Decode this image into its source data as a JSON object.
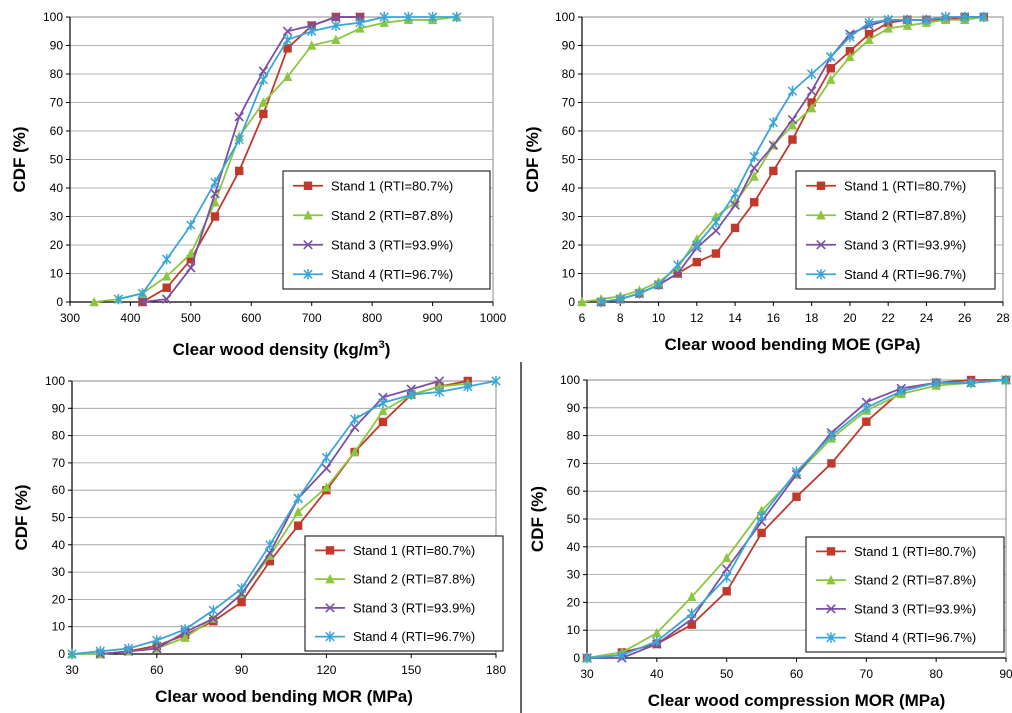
{
  "chart_data": [
    {
      "type": "line",
      "xlabel": "Clear wood density (kg/m",
      "xlabel_superscript": "3",
      "xlabel_suffix": ")",
      "ylabel": "CDF (%)",
      "xlim": [
        300,
        1000
      ],
      "ylim": [
        0,
        100
      ],
      "xticks": [
        300,
        400,
        500,
        600,
        700,
        800,
        900,
        1000
      ],
      "yticks": [
        0,
        10,
        20,
        30,
        40,
        50,
        60,
        70,
        80,
        90,
        100
      ],
      "grid": "horizontal",
      "legend_position": "bottom-right",
      "series": [
        {
          "name": "Stand 1 (RTI=80.7%)",
          "color": "#c0392b",
          "marker": "square",
          "x": [
            420,
            460,
            500,
            540,
            580,
            620,
            660,
            700,
            740,
            780
          ],
          "y": [
            0,
            5,
            15,
            30,
            46,
            66,
            89,
            97,
            100,
            100
          ]
        },
        {
          "name": "Stand 2 (RTI=87.8%)",
          "color": "#8cc63f",
          "marker": "triangle",
          "x": [
            340,
            380,
            420,
            460,
            500,
            540,
            580,
            620,
            660,
            700,
            740,
            780,
            820,
            860,
            900,
            940
          ],
          "y": [
            0,
            1,
            3,
            9,
            17,
            35,
            58,
            70,
            79,
            90,
            92,
            96,
            98,
            99,
            99,
            100
          ]
        },
        {
          "name": "Stand 3 (RTI=93.9%)",
          "color": "#7b4fa3",
          "marker": "x",
          "x": [
            420,
            460,
            500,
            540,
            580,
            620,
            660,
            700,
            740,
            780
          ],
          "y": [
            0,
            1,
            12,
            38,
            65,
            81,
            95,
            97,
            100,
            100
          ]
        },
        {
          "name": "Stand 4 (RTI=96.7%)",
          "color": "#3aa6d8",
          "marker": "star",
          "x": [
            380,
            420,
            460,
            500,
            540,
            580,
            620,
            660,
            700,
            740,
            780,
            820,
            860,
            900,
            940
          ],
          "y": [
            1,
            3,
            15,
            27,
            42,
            57,
            78,
            92,
            95,
            97,
            98,
            100,
            100,
            100,
            100
          ]
        }
      ]
    },
    {
      "type": "line",
      "xlabel": "Clear wood bending MOE (GPa)",
      "ylabel": "CDF (%)",
      "xlim": [
        6,
        28
      ],
      "ylim": [
        0,
        100
      ],
      "xticks": [
        6,
        8,
        10,
        12,
        14,
        16,
        18,
        20,
        22,
        24,
        26,
        28
      ],
      "yticks": [
        0,
        10,
        20,
        30,
        40,
        50,
        60,
        70,
        80,
        90,
        100
      ],
      "grid": "horizontal",
      "legend_position": "bottom-right",
      "series": [
        {
          "name": "Stand 1 (RTI=80.7%)",
          "color": "#c0392b",
          "marker": "square",
          "x": [
            7,
            8,
            9,
            10,
            11,
            12,
            13,
            14,
            15,
            16,
            17,
            18,
            19,
            20,
            21,
            22,
            23,
            24,
            25,
            26,
            27
          ],
          "y": [
            0,
            1,
            3,
            6,
            10,
            14,
            17,
            26,
            35,
            46,
            57,
            70,
            82,
            88,
            94,
            98,
            99,
            99,
            99,
            100,
            100
          ]
        },
        {
          "name": "Stand 2 (RTI=87.8%)",
          "color": "#8cc63f",
          "marker": "triangle",
          "x": [
            6,
            7,
            8,
            9,
            10,
            11,
            12,
            13,
            14,
            15,
            16,
            17,
            18,
            19,
            20,
            21,
            22,
            23,
            24,
            25,
            26,
            27
          ],
          "y": [
            0,
            1,
            2,
            4,
            7,
            12,
            22,
            30,
            35,
            44,
            55,
            62,
            68,
            78,
            86,
            92,
            96,
            97,
            98,
            99,
            99,
            100
          ]
        },
        {
          "name": "Stand 3 (RTI=93.9%)",
          "color": "#7b4fa3",
          "marker": "x",
          "x": [
            7,
            8,
            9,
            10,
            11,
            12,
            13,
            14,
            15,
            16,
            17,
            18,
            19,
            20,
            21,
            22,
            23,
            24,
            25,
            26,
            27
          ],
          "y": [
            0,
            1,
            3,
            6,
            10,
            19,
            25,
            34,
            47,
            55,
            64,
            74,
            86,
            94,
            97,
            99,
            99,
            99,
            100,
            100,
            100
          ]
        },
        {
          "name": "Stand 4 (RTI=96.7%)",
          "color": "#3aa6d8",
          "marker": "star",
          "x": [
            7,
            8,
            9,
            10,
            11,
            12,
            13,
            14,
            15,
            16,
            17,
            18,
            19,
            20,
            21,
            22,
            23,
            24,
            25,
            26,
            27
          ],
          "y": [
            0,
            1,
            3,
            6,
            13,
            20,
            28,
            38,
            51,
            63,
            74,
            80,
            86,
            93,
            98,
            99,
            99,
            99,
            100,
            100,
            100
          ]
        }
      ]
    },
    {
      "type": "line",
      "xlabel": "Clear wood bending MOR (MPa)",
      "ylabel": "CDF (%)",
      "xlim": [
        30,
        180
      ],
      "ylim": [
        0,
        100
      ],
      "xticks": [
        30,
        60,
        90,
        120,
        150,
        180
      ],
      "yticks": [
        0,
        10,
        20,
        30,
        40,
        50,
        60,
        70,
        80,
        90,
        100
      ],
      "grid": "horizontal",
      "legend_position": "bottom-right",
      "series": [
        {
          "name": "Stand 1 (RTI=80.7%)",
          "color": "#c0392b",
          "marker": "square",
          "x": [
            40,
            50,
            60,
            70,
            80,
            90,
            100,
            110,
            120,
            130,
            140,
            150,
            160,
            170
          ],
          "y": [
            0,
            1,
            3,
            7,
            12,
            19,
            34,
            47,
            60,
            74,
            85,
            95,
            98,
            100
          ]
        },
        {
          "name": "Stand 2 (RTI=87.8%)",
          "color": "#8cc63f",
          "marker": "triangle",
          "x": [
            30,
            40,
            50,
            60,
            70,
            80,
            90,
            100,
            110,
            120,
            130,
            140,
            150,
            160,
            170
          ],
          "y": [
            0,
            0,
            1,
            2,
            6,
            13,
            22,
            36,
            52,
            61,
            74,
            89,
            95,
            98,
            99
          ]
        },
        {
          "name": "Stand 3 (RTI=93.9%)",
          "color": "#7b4fa3",
          "marker": "x",
          "x": [
            40,
            50,
            60,
            70,
            80,
            90,
            100,
            110,
            120,
            130,
            140,
            150,
            160
          ],
          "y": [
            0,
            1,
            2,
            8,
            13,
            22,
            37,
            57,
            68,
            83,
            94,
            97,
            100
          ]
        },
        {
          "name": "Stand 4 (RTI=96.7%)",
          "color": "#3aa6d8",
          "marker": "star",
          "x": [
            30,
            40,
            50,
            60,
            70,
            80,
            90,
            100,
            110,
            120,
            130,
            140,
            150,
            160,
            170,
            180
          ],
          "y": [
            0,
            1,
            2,
            5,
            9,
            16,
            24,
            40,
            57,
            72,
            86,
            92,
            95,
            96,
            98,
            100
          ]
        }
      ]
    },
    {
      "type": "line",
      "xlabel": "Clear wood compression MOR (MPa)",
      "ylabel": "CDF (%)",
      "xlim": [
        30,
        90
      ],
      "ylim": [
        0,
        100
      ],
      "xticks": [
        30,
        40,
        50,
        60,
        70,
        80,
        90
      ],
      "yticks": [
        0,
        10,
        20,
        30,
        40,
        50,
        60,
        70,
        80,
        90,
        100
      ],
      "grid": "horizontal",
      "legend_position": "bottom-right",
      "series": [
        {
          "name": "Stand 1 (RTI=80.7%)",
          "color": "#c0392b",
          "marker": "square",
          "x": [
            30,
            35,
            40,
            45,
            50,
            55,
            60,
            65,
            70,
            75,
            80,
            85,
            90
          ],
          "y": [
            0,
            2,
            5,
            12,
            24,
            45,
            58,
            70,
            85,
            96,
            99,
            100,
            100
          ]
        },
        {
          "name": "Stand 2 (RTI=87.8%)",
          "color": "#8cc63f",
          "marker": "triangle",
          "x": [
            30,
            35,
            40,
            45,
            50,
            55,
            60,
            65,
            70,
            75,
            80,
            85,
            90
          ],
          "y": [
            0,
            2,
            9,
            22,
            36,
            53,
            66,
            79,
            89,
            95,
            98,
            99,
            100
          ]
        },
        {
          "name": "Stand 3 (RTI=93.9%)",
          "color": "#7b4fa3",
          "marker": "x",
          "x": [
            30,
            35,
            40,
            45,
            50,
            55,
            60,
            65,
            70,
            75,
            80,
            85,
            90
          ],
          "y": [
            0,
            0,
            5,
            14,
            32,
            49,
            66,
            81,
            92,
            97,
            99,
            99,
            100
          ]
        },
        {
          "name": "Stand 4 (RTI=96.7%)",
          "color": "#3aa6d8",
          "marker": "star",
          "x": [
            30,
            35,
            40,
            45,
            50,
            55,
            60,
            65,
            70,
            75,
            80,
            85,
            90
          ],
          "y": [
            0,
            1,
            6,
            16,
            29,
            51,
            67,
            80,
            90,
            96,
            99,
            99,
            100
          ]
        }
      ]
    }
  ]
}
